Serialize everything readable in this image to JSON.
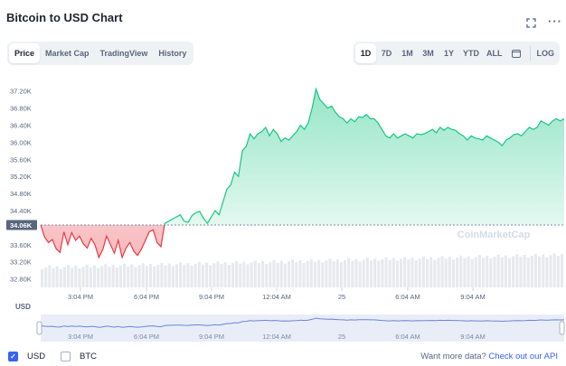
{
  "header": {
    "title": "Bitcoin to USD Chart",
    "expand_icon": "expand-icon",
    "more_icon": "more-icon",
    "more_label": "···"
  },
  "tabs": [
    {
      "label": "Price",
      "active": true
    },
    {
      "label": "Market Cap",
      "active": false
    },
    {
      "label": "TradingView",
      "active": false
    },
    {
      "label": "History",
      "active": false
    }
  ],
  "ranges": [
    {
      "label": "1D",
      "active": true
    },
    {
      "label": "7D",
      "active": false
    },
    {
      "label": "1M",
      "active": false
    },
    {
      "label": "3M",
      "active": false
    },
    {
      "label": "1Y",
      "active": false
    },
    {
      "label": "YTD",
      "active": false
    },
    {
      "label": "ALL",
      "active": false
    }
  ],
  "calendar_icon": "calendar-icon",
  "log_label": "LOG",
  "colors": {
    "up": "#16c784",
    "down": "#ea3943",
    "accent": "#3861fb",
    "baseline_badge": "#58667e"
  },
  "chart_data": {
    "type": "area",
    "y_unit": "USD",
    "ylim": [
      32600,
      37300
    ],
    "y_ticks": [
      "37.20K",
      "36.80K",
      "36.40K",
      "36.00K",
      "35.60K",
      "35.20K",
      "34.80K",
      "34.40K",
      "34.00K",
      "33.60K",
      "33.20K",
      "32.80K"
    ],
    "y_tick_values": [
      37200,
      36800,
      36400,
      36000,
      35600,
      35200,
      34800,
      34400,
      34000,
      33600,
      33200,
      32800
    ],
    "x_ticks": [
      "3:04 PM",
      "6:04 PM",
      "9:04 PM",
      "12:04 AM",
      "25",
      "6:04 AM",
      "9:04 AM"
    ],
    "baseline": 34060,
    "baseline_label": "34.06K",
    "currency_label": "USD",
    "watermark": "CoinMarketCap",
    "series": [
      {
        "values": [
          34060,
          33780,
          33650,
          33720,
          33500,
          33420,
          33900,
          33600,
          33880,
          33700,
          33800,
          33620,
          33520,
          33750,
          33600,
          33300,
          33480,
          33800,
          33600,
          33400,
          33700,
          33300,
          33520,
          33650,
          33450,
          33350,
          33500,
          33700,
          33900,
          33950,
          33650,
          33550,
          34100,
          34150,
          34200,
          34250,
          34300,
          34150,
          34120,
          34280,
          34350,
          34380,
          34220,
          34100,
          34250,
          34400,
          34300,
          34600,
          34900,
          35000,
          35300,
          35200,
          35800,
          35900,
          36200,
          36080,
          36200,
          36250,
          36350,
          36150,
          36300,
          36200,
          36020,
          36100,
          36050,
          36150,
          36250,
          36400,
          36300,
          36450,
          36800,
          37250,
          37000,
          36900,
          36800,
          36850,
          36700,
          36600,
          36550,
          36450,
          36550,
          36480,
          36600,
          36580,
          36650,
          36550,
          36550,
          36450,
          36300,
          36150,
          36100,
          36200,
          36100,
          36150,
          36200,
          36150,
          36100,
          36200,
          36180,
          36200,
          36250,
          36300,
          36220,
          36350,
          36280,
          36350,
          36300,
          36280,
          36200,
          36150,
          36050,
          36150,
          36100,
          36080,
          36050,
          36150,
          36100,
          36050,
          36000,
          35920,
          36050,
          36100,
          36180,
          36200,
          36150,
          36250,
          36350,
          36300,
          36350,
          36500,
          36450,
          36400,
          36500,
          36550,
          36500,
          36550
        ]
      }
    ],
    "volume_bars": 140,
    "grid": false,
    "legend": "bottom-left"
  },
  "legend": {
    "usd_label": "USD",
    "usd_checked": true,
    "btc_label": "BTC",
    "btc_checked": false,
    "check_glyph": "✓"
  },
  "footer": {
    "question": "Want more data? ",
    "link": "Check out our API"
  }
}
